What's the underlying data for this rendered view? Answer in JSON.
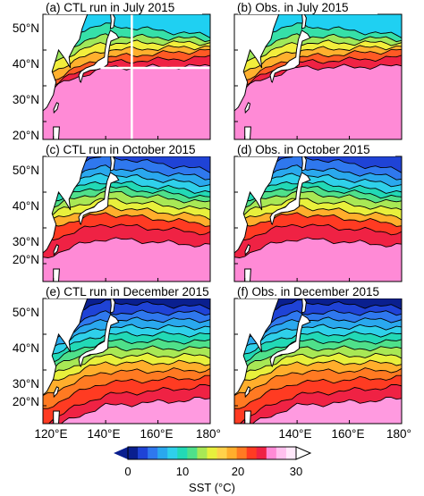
{
  "chart_data": [
    {
      "type": "heatmap",
      "panel": "a",
      "title": "(a) CTL run in July 2015",
      "month": "July",
      "iso_lat_at_140E": [
        47,
        44,
        42,
        40,
        38,
        36.5,
        35
      ],
      "iso_lat_at_180E": [
        44,
        43,
        42,
        41,
        40,
        38,
        35.5
      ]
    },
    {
      "type": "heatmap",
      "panel": "b",
      "title": "(b) Obs. in July 2015",
      "month": "July",
      "iso_lat_at_140E": [
        47,
        44,
        42,
        40,
        38,
        36.5,
        35
      ],
      "iso_lat_at_180E": [
        44,
        43,
        42,
        41,
        40,
        38,
        35.5
      ]
    },
    {
      "type": "heatmap",
      "panel": "c",
      "title": "(c) CTL run in October 2015",
      "month": "October",
      "iso_lat_at_140E": [
        50,
        47,
        45,
        43,
        41.5,
        40,
        38,
        36,
        34,
        31,
        27
      ],
      "iso_lat_at_180E": [
        46,
        44,
        42,
        40,
        38.5,
        37,
        35,
        33,
        31,
        28.5,
        25
      ]
    },
    {
      "type": "heatmap",
      "panel": "d",
      "title": "(d) Obs. in October 2015",
      "month": "October",
      "iso_lat_at_140E": [
        50,
        47,
        45,
        43,
        41.5,
        40,
        38,
        36,
        34,
        31,
        27
      ],
      "iso_lat_at_180E": [
        46,
        44,
        42,
        40,
        38.5,
        37,
        35,
        33,
        31,
        28.5,
        25
      ]
    },
    {
      "type": "heatmap",
      "panel": "e",
      "title": "(e) CTL run in December 2015",
      "month": "December",
      "iso_lat_at_140E": [
        49,
        46,
        44,
        42,
        40,
        38,
        36,
        34,
        32,
        29.5,
        26.5,
        23,
        20
      ],
      "iso_lat_at_180E": [
        47.5,
        46,
        44,
        42,
        40,
        38,
        36,
        34,
        32,
        30,
        28,
        25.5,
        22
      ]
    },
    {
      "type": "heatmap",
      "panel": "f",
      "title": "(f) Obs. in December 2015",
      "month": "December",
      "iso_lat_at_140E": [
        49,
        46,
        44,
        42,
        40,
        38,
        36,
        34,
        32,
        29.5,
        26.5,
        23,
        20
      ],
      "iso_lat_at_180E": [
        47.5,
        46,
        44,
        42,
        40,
        38,
        36,
        34,
        32,
        30,
        28,
        25.5,
        22
      ]
    }
  ],
  "map": {
    "lon_range": [
      116,
      180
    ],
    "lat_range": [
      15,
      50
    ],
    "x_ticks": [
      120,
      140,
      160,
      180
    ],
    "x_tick_labels": [
      "120°E",
      "140°E",
      "160°E",
      "180°"
    ],
    "y_ticks": [
      20,
      30,
      40,
      50
    ],
    "y_tick_labels": [
      "20°N",
      "30°N",
      "40°N",
      "50°N"
    ]
  },
  "colorbar": {
    "label": "SST (°C)",
    "range": [
      0,
      30
    ],
    "ticks": [
      0,
      10,
      20,
      30
    ],
    "tick_labels": [
      "0",
      "10",
      "20",
      "30"
    ],
    "colors": [
      "#0a1f8f",
      "#1f43d6",
      "#2f78ee",
      "#2aa8ee",
      "#2fd0ea",
      "#22d9b6",
      "#4fe08a",
      "#a8e855",
      "#e8f03c",
      "#ffd24a",
      "#ffae2c",
      "#ff7a22",
      "#ff3b22",
      "#ef2244",
      "#ff8ad6",
      "#ffc0ee",
      "#ffe8fa"
    ]
  }
}
